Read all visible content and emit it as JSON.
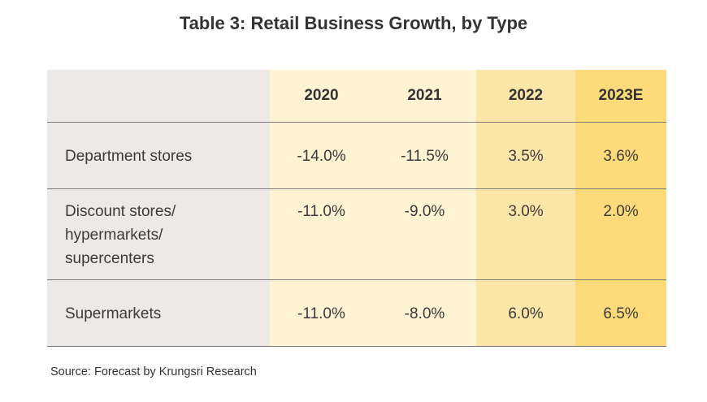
{
  "title": "Table 3: Retail Business Growth, by Type",
  "table": {
    "columns": [
      "",
      "2020",
      "2021",
      "2022",
      "2023E"
    ],
    "rows": [
      {
        "label": "Department stores",
        "values": [
          "-14.0%",
          "-11.5%",
          "3.5%",
          "3.6%"
        ]
      },
      {
        "label_lines": [
          "Discount stores/",
          "hypermarkets/",
          "supercenters"
        ],
        "values": [
          "-11.0%",
          "-9.0%",
          "3.0%",
          "2.0%"
        ]
      },
      {
        "label": "Supermarkets",
        "values": [
          "-11.0%",
          "-8.0%",
          "6.0%",
          "6.5%"
        ]
      }
    ]
  },
  "source": "Source: Forecast by Krungsri Research",
  "colors": {
    "label_column": "#ede9e7",
    "actual_years": "#fff3d4",
    "year_2022": "#fee6a8",
    "estimate_2023": "#fedb7a"
  }
}
